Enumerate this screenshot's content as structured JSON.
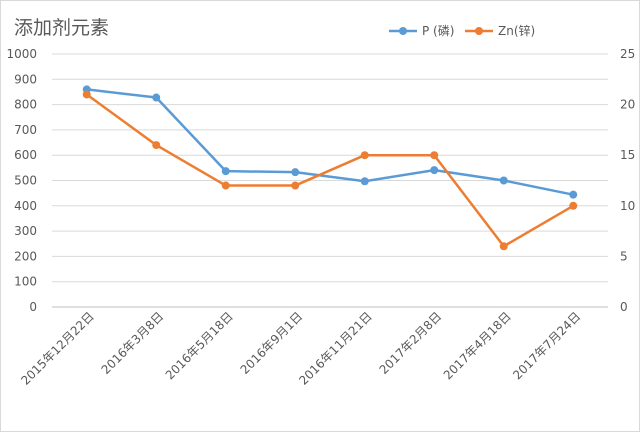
{
  "chart_data": {
    "type": "line",
    "title": "添加剂元素",
    "categories": [
      "2015年12月22日",
      "2016年3月8日",
      "2016年5月18日",
      "2016年9月1日",
      "2016年11月21日",
      "2017年2月8日",
      "2017年4月18日",
      "2017年7月24日"
    ],
    "series": [
      {
        "name": "P (磷)",
        "axis": "left",
        "color": "#5b9bd5",
        "values": [
          860,
          828,
          537,
          533,
          497,
          541,
          500,
          444
        ]
      },
      {
        "name": "Zn(锌)",
        "axis": "right",
        "color": "#ed7d31",
        "values": [
          21,
          16,
          12,
          12,
          15,
          15,
          6,
          10
        ]
      }
    ],
    "ylim": [
      0,
      1000
    ],
    "yticks": [
      0,
      100,
      200,
      300,
      400,
      500,
      600,
      700,
      800,
      900,
      1000
    ],
    "y2lim": [
      0,
      25
    ],
    "y2ticks": [
      0,
      5,
      10,
      15,
      20,
      25
    ],
    "grid": true,
    "legend_position": "top-right"
  }
}
